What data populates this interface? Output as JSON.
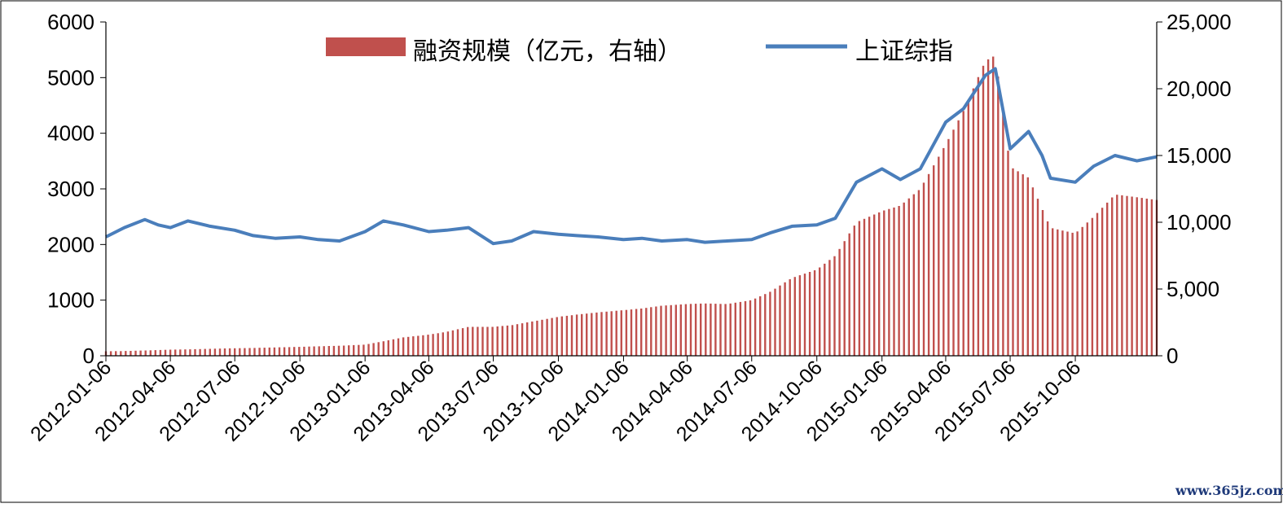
{
  "chart_data": {
    "type": "bar+line",
    "title": "",
    "legend_position": "top",
    "y_left": {
      "ticks": [
        "0",
        "1000",
        "2000",
        "3000",
        "4000",
        "5000",
        "6000"
      ],
      "ylim": [
        0,
        6000
      ]
    },
    "y_right": {
      "ticks": [
        "0",
        "5,000",
        "10,000",
        "15,000",
        "20,000",
        "25,000"
      ],
      "ylim": [
        0,
        25000
      ]
    },
    "x": {
      "start": "2012-01-06",
      "end": "2016-01-29",
      "tick_labels": [
        "2012-01-06",
        "2012-04-06",
        "2012-07-06",
        "2012-10-06",
        "2013-01-06",
        "2013-04-06",
        "2013-07-06",
        "2013-10-06",
        "2014-01-06",
        "2014-04-06",
        "2014-07-06",
        "2014-10-06",
        "2015-01-06",
        "2015-04-06",
        "2015-07-06",
        "2015-10-06"
      ]
    },
    "series": [
      {
        "name": "融资规模（亿元，右轴）",
        "kind": "bar",
        "axis": "left",
        "color": "#c0504d",
        "points": [
          [
            "2012-01-06",
            80
          ],
          [
            "2012-02-01",
            85
          ],
          [
            "2012-03-01",
            95
          ],
          [
            "2012-04-06",
            110
          ],
          [
            "2012-05-01",
            115
          ],
          [
            "2012-06-01",
            125
          ],
          [
            "2012-07-06",
            135
          ],
          [
            "2012-08-01",
            140
          ],
          [
            "2012-09-01",
            150
          ],
          [
            "2012-10-06",
            160
          ],
          [
            "2012-11-01",
            170
          ],
          [
            "2012-12-01",
            180
          ],
          [
            "2013-01-06",
            200
          ],
          [
            "2013-02-01",
            260
          ],
          [
            "2013-03-01",
            330
          ],
          [
            "2013-04-06",
            380
          ],
          [
            "2013-05-01",
            430
          ],
          [
            "2013-06-01",
            520
          ],
          [
            "2013-07-06",
            520
          ],
          [
            "2013-08-01",
            550
          ],
          [
            "2013-09-01",
            620
          ],
          [
            "2013-10-06",
            700
          ],
          [
            "2013-11-01",
            740
          ],
          [
            "2013-12-01",
            780
          ],
          [
            "2014-01-06",
            820
          ],
          [
            "2014-02-01",
            850
          ],
          [
            "2014-03-01",
            900
          ],
          [
            "2014-04-06",
            930
          ],
          [
            "2014-05-01",
            940
          ],
          [
            "2014-06-01",
            930
          ],
          [
            "2014-07-06",
            1000
          ],
          [
            "2014-08-01",
            1150
          ],
          [
            "2014-09-01",
            1400
          ],
          [
            "2014-10-06",
            1550
          ],
          [
            "2014-11-01",
            1800
          ],
          [
            "2014-12-01",
            2400
          ],
          [
            "2015-01-06",
            2600
          ],
          [
            "2015-02-01",
            2700
          ],
          [
            "2015-03-01",
            3000
          ],
          [
            "2015-04-06",
            3800
          ],
          [
            "2015-05-01",
            4400
          ],
          [
            "2015-06-01",
            5300
          ],
          [
            "2015-06-15",
            5400
          ],
          [
            "2015-07-06",
            3400
          ],
          [
            "2015-08-01",
            3200
          ],
          [
            "2015-09-01",
            2300
          ],
          [
            "2015-10-06",
            2200
          ],
          [
            "2015-11-01",
            2500
          ],
          [
            "2015-12-01",
            2900
          ],
          [
            "2016-01-01",
            2850
          ],
          [
            "2016-01-29",
            2800
          ]
        ]
      },
      {
        "name": "上证综指",
        "kind": "line",
        "axis": "right",
        "color": "#4a7ebb",
        "points": [
          [
            "2012-01-06",
            8900
          ],
          [
            "2012-02-01",
            9600
          ],
          [
            "2012-03-01",
            10200
          ],
          [
            "2012-03-20",
            9800
          ],
          [
            "2012-04-06",
            9600
          ],
          [
            "2012-05-01",
            10100
          ],
          [
            "2012-06-01",
            9700
          ],
          [
            "2012-07-06",
            9400
          ],
          [
            "2012-08-01",
            9000
          ],
          [
            "2012-09-01",
            8800
          ],
          [
            "2012-10-06",
            8900
          ],
          [
            "2012-11-01",
            8700
          ],
          [
            "2012-12-01",
            8600
          ],
          [
            "2013-01-06",
            9300
          ],
          [
            "2013-02-01",
            10100
          ],
          [
            "2013-03-01",
            9800
          ],
          [
            "2013-04-06",
            9300
          ],
          [
            "2013-05-01",
            9400
          ],
          [
            "2013-06-01",
            9600
          ],
          [
            "2013-07-06",
            8400
          ],
          [
            "2013-08-01",
            8600
          ],
          [
            "2013-09-01",
            9300
          ],
          [
            "2013-10-06",
            9100
          ],
          [
            "2013-11-01",
            9000
          ],
          [
            "2013-12-01",
            8900
          ],
          [
            "2014-01-06",
            8700
          ],
          [
            "2014-02-01",
            8800
          ],
          [
            "2014-03-01",
            8600
          ],
          [
            "2014-04-06",
            8700
          ],
          [
            "2014-05-01",
            8500
          ],
          [
            "2014-06-01",
            8600
          ],
          [
            "2014-07-06",
            8700
          ],
          [
            "2014-08-01",
            9200
          ],
          [
            "2014-09-01",
            9700
          ],
          [
            "2014-10-06",
            9800
          ],
          [
            "2014-11-01",
            10300
          ],
          [
            "2014-12-01",
            13000
          ],
          [
            "2015-01-06",
            14000
          ],
          [
            "2015-02-01",
            13200
          ],
          [
            "2015-03-01",
            14000
          ],
          [
            "2015-04-06",
            17500
          ],
          [
            "2015-05-01",
            18500
          ],
          [
            "2015-06-01",
            21000
          ],
          [
            "2015-06-15",
            21500
          ],
          [
            "2015-07-06",
            15500
          ],
          [
            "2015-08-01",
            16800
          ],
          [
            "2015-08-20",
            15000
          ],
          [
            "2015-09-01",
            13300
          ],
          [
            "2015-10-06",
            13000
          ],
          [
            "2015-11-01",
            14200
          ],
          [
            "2015-12-01",
            15000
          ],
          [
            "2016-01-01",
            14600
          ],
          [
            "2016-01-29",
            14900
          ]
        ]
      }
    ]
  },
  "watermark": "www.365jz.com"
}
